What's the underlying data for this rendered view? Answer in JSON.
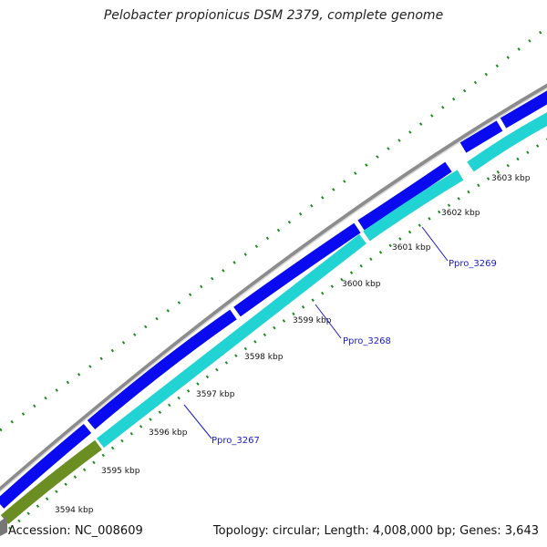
{
  "title": "Pelobacter propionicus DSM 2379, complete genome",
  "footer": {
    "accession": "Accession: NC_008609",
    "summary": "Topology: circular; Length: 4,008,000 bp; Genes: 3,643"
  },
  "colors": {
    "backbone": "#8c8c8c",
    "forward_gene": "#0a0af0",
    "reverse_gene": "#22d3d3",
    "rna_feature": "#6b8e23",
    "tick_marks": "#1e8c1e",
    "label_line": "#1a1acc"
  },
  "ticks": [
    {
      "label": "3594 kbp"
    },
    {
      "label": "3595 kbp"
    },
    {
      "label": "3596 kbp"
    },
    {
      "label": "3597 kbp"
    },
    {
      "label": "3598 kbp"
    },
    {
      "label": "3599 kbp"
    },
    {
      "label": "3600 kbp"
    },
    {
      "label": "3601 kbp"
    },
    {
      "label": "3602 kbp"
    },
    {
      "label": "3603 kbp"
    }
  ],
  "gene_labels": [
    {
      "name": "Ppro_3267"
    },
    {
      "name": "Ppro_3268"
    },
    {
      "name": "Ppro_3269"
    }
  ]
}
